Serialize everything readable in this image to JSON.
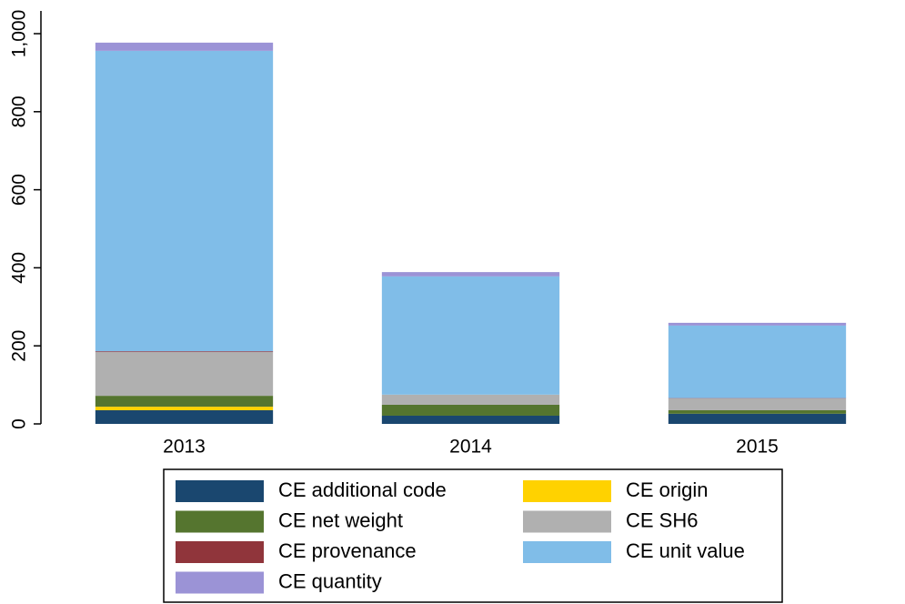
{
  "chart_data": {
    "type": "stacked_bar",
    "categories": [
      "2013",
      "2014",
      "2015"
    ],
    "series": [
      {
        "name": "CE additional code",
        "color": "#1a476f",
        "values": [
          35,
          21,
          26
        ]
      },
      {
        "name": "CE origin",
        "color": "#ffd200",
        "values": [
          9,
          0,
          0
        ]
      },
      {
        "name": "CE net weight",
        "color": "#55752f",
        "values": [
          28,
          28,
          9
        ]
      },
      {
        "name": "CE SH6",
        "color": "#b0b0b0",
        "values": [
          112,
          26,
          30
        ]
      },
      {
        "name": "CE provenance",
        "color": "#90353b",
        "values": [
          2,
          0,
          1
        ]
      },
      {
        "name": "CE unit value",
        "color": "#80bde8",
        "values": [
          770,
          303,
          186
        ]
      },
      {
        "name": "CE quantity",
        "color": "#9b93d6",
        "values": [
          21,
          11,
          7
        ]
      }
    ],
    "ylim": [
      0,
      1000
    ],
    "yticks": [
      0,
      200,
      400,
      600,
      800,
      {
        "value": 1000,
        "label": "1,000"
      }
    ],
    "grid": false
  }
}
